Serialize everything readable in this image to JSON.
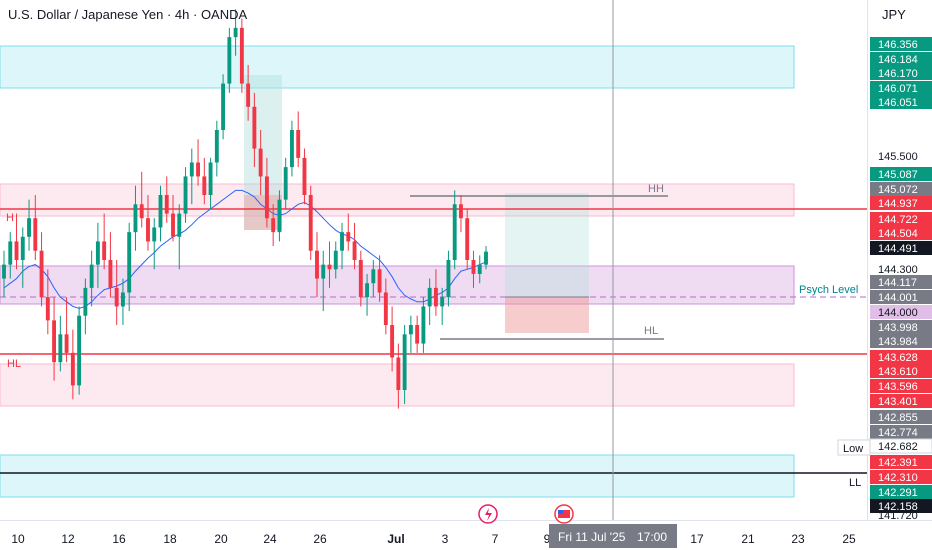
{
  "header": {
    "title": "U.S. Dollar / Japanese Yen · 4h · OANDA",
    "currency": "JPY"
  },
  "colors": {
    "up": "#089981",
    "down": "#f23645",
    "resistance_line": "#f23645",
    "support_line": "#131722",
    "zone_blue": "#b2ebf2",
    "zone_pink": "#f8bbd0",
    "zone_purple": "#e1bee7",
    "ma_line": "#2962ff",
    "psych_text": "#00838f"
  },
  "chart_data": {
    "type": "candlestick",
    "symbol": "U.S. Dollar / Japanese Yen",
    "interval": "4h",
    "source": "OANDA",
    "x_ticks": [
      "10",
      "12",
      "16",
      "18",
      "20",
      "24",
      "26",
      "Jul",
      "3",
      "7",
      "9",
      "17",
      "21",
      "23",
      "25"
    ],
    "crosshair_date": "Fri 11 Jul '25",
    "crosshair_time": "17:00",
    "y_ticks": [
      "145.500",
      "144.300",
      "141.720"
    ],
    "price_tags": [
      {
        "value": "146.356",
        "kind": "up"
      },
      {
        "value": "146.184",
        "kind": "up"
      },
      {
        "value": "146.170",
        "kind": "up"
      },
      {
        "value": "146.071",
        "kind": "up"
      },
      {
        "value": "146.051",
        "kind": "up"
      },
      {
        "value": "145.087",
        "kind": "up"
      },
      {
        "value": "145.072",
        "kind": "grey"
      },
      {
        "value": "144.937",
        "kind": "down"
      },
      {
        "value": "144.722",
        "kind": "down"
      },
      {
        "value": "144.504",
        "kind": "down"
      },
      {
        "value": "144.491",
        "kind": "dark"
      },
      {
        "value": "144.117",
        "kind": "grey"
      },
      {
        "value": "144.001",
        "kind": "grey"
      },
      {
        "value": "144.000",
        "kind": "lilac"
      },
      {
        "value": "143.998",
        "kind": "grey"
      },
      {
        "value": "143.984",
        "kind": "grey"
      },
      {
        "value": "143.628",
        "kind": "down"
      },
      {
        "value": "143.610",
        "kind": "down"
      },
      {
        "value": "143.596",
        "kind": "down"
      },
      {
        "value": "143.401",
        "kind": "down"
      },
      {
        "value": "142.855",
        "kind": "grey"
      },
      {
        "value": "142.774",
        "kind": "grey"
      },
      {
        "value": "142.682",
        "kind": "light"
      },
      {
        "value": "142.391",
        "kind": "down"
      },
      {
        "value": "142.310",
        "kind": "down"
      },
      {
        "value": "142.291",
        "kind": "up"
      },
      {
        "value": "142.158",
        "kind": "dark"
      }
    ],
    "annotations": {
      "hh_label": "HH",
      "hl_label_right": "HL",
      "hl_label_left": "HL",
      "h_label_left": "H",
      "psych_label": "Psych Level",
      "low_label": "Low",
      "ll_label": "LL"
    },
    "candles": [
      [
        144.2,
        144.5,
        144.0,
        144.35
      ],
      [
        144.35,
        144.7,
        144.2,
        144.6
      ],
      [
        144.6,
        144.9,
        144.3,
        144.4
      ],
      [
        144.4,
        144.75,
        144.1,
        144.65
      ],
      [
        144.65,
        145.05,
        144.5,
        144.85
      ],
      [
        144.85,
        145.1,
        144.4,
        144.5
      ],
      [
        144.5,
        144.7,
        143.9,
        144.0
      ],
      [
        144.0,
        144.3,
        143.6,
        143.75
      ],
      [
        143.75,
        144.0,
        143.1,
        143.3
      ],
      [
        143.3,
        143.8,
        143.2,
        143.6
      ],
      [
        143.6,
        144.0,
        143.3,
        143.4
      ],
      [
        143.4,
        143.65,
        142.9,
        143.05
      ],
      [
        143.05,
        143.9,
        142.95,
        143.8
      ],
      [
        143.8,
        144.2,
        143.6,
        144.1
      ],
      [
        144.1,
        144.5,
        143.9,
        144.35
      ],
      [
        144.35,
        144.8,
        144.1,
        144.6
      ],
      [
        144.6,
        144.9,
        144.3,
        144.4
      ],
      [
        144.4,
        144.7,
        144.0,
        144.1
      ],
      [
        144.1,
        144.4,
        143.7,
        143.9
      ],
      [
        143.9,
        144.2,
        143.7,
        144.05
      ],
      [
        144.05,
        144.8,
        143.85,
        144.7
      ],
      [
        144.7,
        145.2,
        144.5,
        145.0
      ],
      [
        145.0,
        145.35,
        144.75,
        144.85
      ],
      [
        144.85,
        145.1,
        144.5,
        144.6
      ],
      [
        144.6,
        144.85,
        144.3,
        144.75
      ],
      [
        144.75,
        145.2,
        144.6,
        145.1
      ],
      [
        145.1,
        145.3,
        144.8,
        144.9
      ],
      [
        144.9,
        145.1,
        144.6,
        144.65
      ],
      [
        144.65,
        145.0,
        144.3,
        144.9
      ],
      [
        144.9,
        145.4,
        144.8,
        145.3
      ],
      [
        145.3,
        145.6,
        145.0,
        145.45
      ],
      [
        145.45,
        145.7,
        145.2,
        145.3
      ],
      [
        145.3,
        145.5,
        145.0,
        145.1
      ],
      [
        145.1,
        145.5,
        144.95,
        145.45
      ],
      [
        145.45,
        145.9,
        145.3,
        145.8
      ],
      [
        145.8,
        146.4,
        145.7,
        146.3
      ],
      [
        146.3,
        146.9,
        146.2,
        146.8
      ],
      [
        146.8,
        147.1,
        146.6,
        146.9
      ],
      [
        146.9,
        147.0,
        146.2,
        146.3
      ],
      [
        146.3,
        146.5,
        145.9,
        146.05
      ],
      [
        146.05,
        146.2,
        145.4,
        145.6
      ],
      [
        145.6,
        145.8,
        145.1,
        145.3
      ],
      [
        145.3,
        145.5,
        144.75,
        144.85
      ],
      [
        144.85,
        145.0,
        144.55,
        144.7
      ],
      [
        144.7,
        145.15,
        144.6,
        145.05
      ],
      [
        145.05,
        145.5,
        144.95,
        145.4
      ],
      [
        145.4,
        145.9,
        145.3,
        145.8
      ],
      [
        145.8,
        146.0,
        145.4,
        145.5
      ],
      [
        145.5,
        145.6,
        145.0,
        145.1
      ],
      [
        145.1,
        145.2,
        144.4,
        144.5
      ],
      [
        144.5,
        144.7,
        144.0,
        144.2
      ],
      [
        144.2,
        144.5,
        143.85,
        144.35
      ],
      [
        144.35,
        144.6,
        144.1,
        144.3
      ],
      [
        144.3,
        144.6,
        144.2,
        144.5
      ],
      [
        144.5,
        144.8,
        144.3,
        144.7
      ],
      [
        144.7,
        144.9,
        144.5,
        144.6
      ],
      [
        144.6,
        144.8,
        144.3,
        144.4
      ],
      [
        144.4,
        144.5,
        143.9,
        144.0
      ],
      [
        144.0,
        144.25,
        143.8,
        144.15
      ],
      [
        144.15,
        144.4,
        144.0,
        144.3
      ],
      [
        144.3,
        144.45,
        143.95,
        144.05
      ],
      [
        144.05,
        144.2,
        143.6,
        143.7
      ],
      [
        143.7,
        143.9,
        143.2,
        143.35
      ],
      [
        143.35,
        143.5,
        142.8,
        143.0
      ],
      [
        143.0,
        143.7,
        142.85,
        143.6
      ],
      [
        143.6,
        143.8,
        143.4,
        143.7
      ],
      [
        143.7,
        143.8,
        143.4,
        143.5
      ],
      [
        143.5,
        144.0,
        143.4,
        143.9
      ],
      [
        143.9,
        144.2,
        143.7,
        144.1
      ],
      [
        144.1,
        144.3,
        143.8,
        143.9
      ],
      [
        143.9,
        144.1,
        143.7,
        144.0
      ],
      [
        144.0,
        144.5,
        143.9,
        144.4
      ],
      [
        144.4,
        145.15,
        144.3,
        145.0
      ],
      [
        145.0,
        145.1,
        144.7,
        144.85
      ],
      [
        144.85,
        144.95,
        144.3,
        144.4
      ],
      [
        144.4,
        144.5,
        144.1,
        144.25
      ],
      [
        144.25,
        144.45,
        144.15,
        144.35
      ],
      [
        144.35,
        144.55,
        144.3,
        144.49
      ]
    ],
    "ma": [
      144.1,
      144.15,
      144.2,
      144.28,
      144.33,
      144.35,
      144.3,
      144.22,
      144.1,
      144.0,
      143.95,
      143.9,
      143.88,
      143.9,
      143.95,
      144.02,
      144.08,
      144.1,
      144.12,
      144.15,
      144.2,
      144.28,
      144.35,
      144.42,
      144.48,
      144.55,
      144.6,
      144.65,
      144.68,
      144.72,
      144.78,
      144.85,
      144.9,
      144.95,
      145.0,
      145.05,
      145.1,
      145.15,
      145.15,
      145.12,
      145.08,
      145.0,
      144.95,
      144.9,
      144.88,
      144.9,
      144.95,
      145.0,
      145.02,
      144.98,
      144.92,
      144.85,
      144.78,
      144.72,
      144.68,
      144.66,
      144.62,
      144.55,
      144.5,
      144.45,
      144.4,
      144.32,
      144.22,
      144.1,
      144.02,
      143.98,
      143.95,
      143.95,
      143.98,
      144.02,
      144.05,
      144.1,
      144.2,
      144.28,
      144.3,
      144.32,
      144.35,
      144.38
    ],
    "ylim": [
      141.6,
      147.2
    ]
  }
}
